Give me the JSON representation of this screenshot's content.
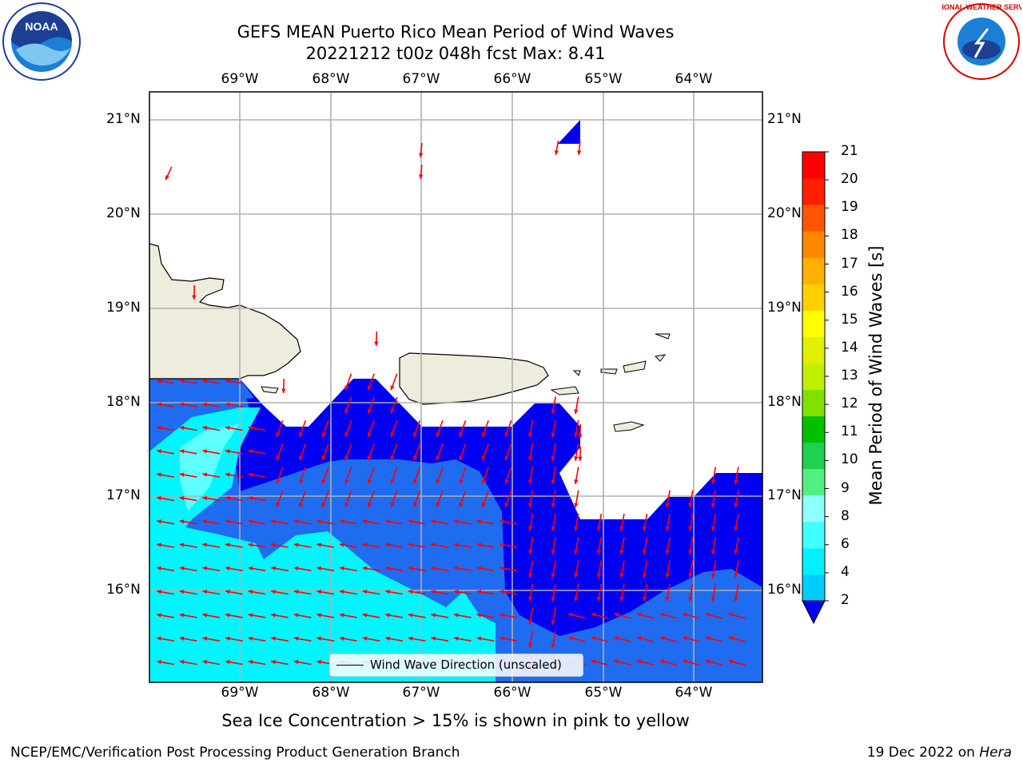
{
  "title": {
    "line1": "GEFS MEAN Puerto Rico Mean Period of Wind Waves",
    "line2": "20221212 t00z 048h fcst   Max: 8.41"
  },
  "lon_labels": [
    "69°W",
    "68°W",
    "67°W",
    "66°W",
    "65°W",
    "64°W"
  ],
  "lat_labels": [
    "21°N",
    "20°N",
    "19°N",
    "18°N",
    "17°N",
    "16°N"
  ],
  "legend": {
    "label": "Wind Wave Direction (unscaled)"
  },
  "colorbar": {
    "label": "Mean Period of Wind Waves [s]",
    "ticks": [
      "2",
      "4",
      "6",
      "8",
      "9",
      "10",
      "11",
      "12",
      "13",
      "14",
      "15",
      "16",
      "17",
      "18",
      "19",
      "20",
      "21"
    ],
    "colors": [
      "#1f6cf0",
      "#00ccff",
      "#00f0ff",
      "#40ffff",
      "#90ffff",
      "#50f080",
      "#20d050",
      "#00c000",
      "#80e000",
      "#c0f000",
      "#e0f000",
      "#ffff00",
      "#ffd000",
      "#ffb000",
      "#ff8800",
      "#ff5500",
      "#ff2000",
      "#ff0000"
    ],
    "under_color": "#0000f0"
  },
  "ice_note": "Sea Ice Concentration > 15% is shown in pink to yellow",
  "footer": {
    "left": "NCEP/EMC/Verification Post Processing Product Generation Branch",
    "right_prefix": "19 Dec 2022 on ",
    "right_host": "Hera"
  },
  "logos": {
    "left": "NOAA",
    "right": "NATIONAL WEATHER SERVICE"
  },
  "colors": {
    "land": "#eeecdc",
    "dark_blue": "#0000f0",
    "medium_blue": "#1f6cf0",
    "cyan": "#00f5ff",
    "light_cyan": "#60ffff",
    "arrow": "#ff0000",
    "grid": "#b0b0b0"
  }
}
